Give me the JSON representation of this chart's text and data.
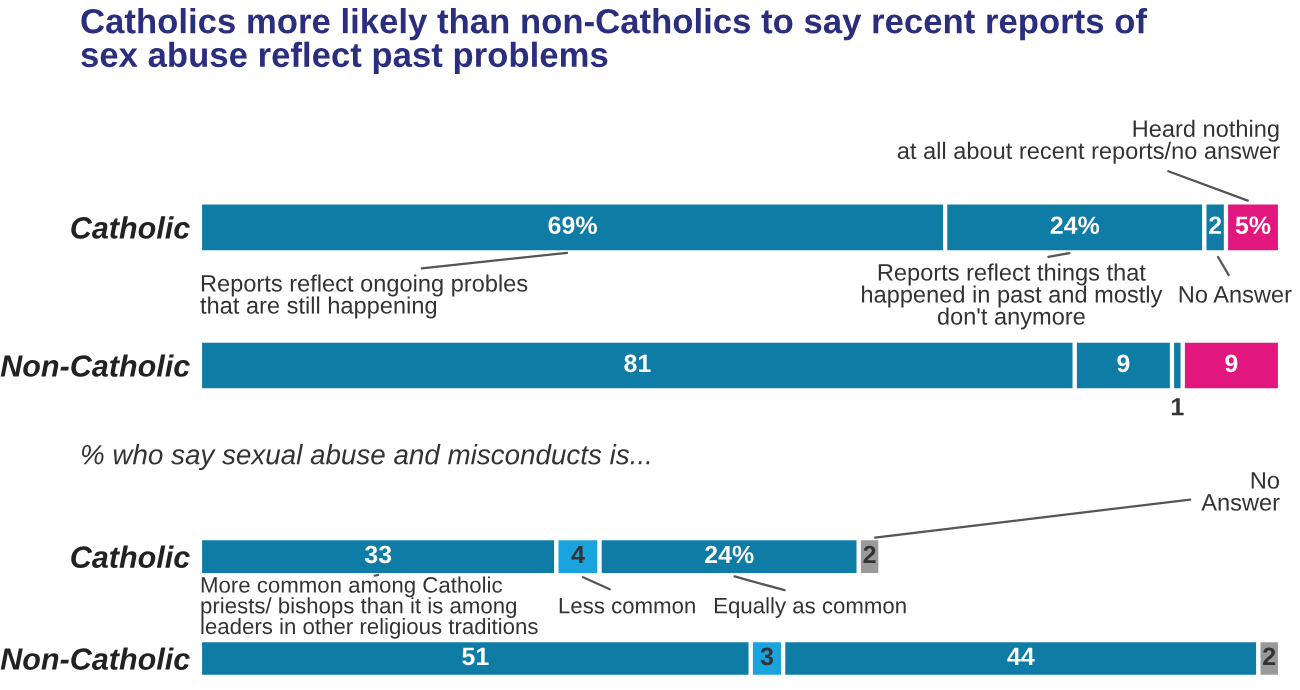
{
  "chart_data": [
    {
      "type": "bar",
      "orientation": "horizontal",
      "stacked": true,
      "tick_labels": "y",
      "title": "Catholics more likely than non-Catholics to say recent reports of\nsex abuse reflect past problems",
      "categories": [
        "Catholic",
        "Non-Catholic"
      ],
      "series": [
        {
          "name": "Reports reflect ongoing probles\nthat are still happening",
          "color": "#0f7ca6",
          "values": [
            69,
            81
          ],
          "value_labels": [
            "69%",
            "81"
          ]
        },
        {
          "name": "Reports reflect things that\nhappened in past and mostly\ndon't anymore",
          "color": "#0f7ca6",
          "values": [
            24,
            9
          ],
          "value_labels": [
            "24%",
            "9"
          ]
        },
        {
          "name": "No Answer",
          "color": "#0f7ca6",
          "values": [
            2,
            1
          ],
          "value_labels": [
            "2",
            "1"
          ]
        },
        {
          "name": "Heard nothing\nat all about recent reports/no answer",
          "color": "#e2177e",
          "values": [
            5,
            9
          ],
          "value_labels": [
            "5%",
            "9"
          ]
        }
      ]
    },
    {
      "type": "bar",
      "orientation": "horizontal",
      "stacked": true,
      "tick_labels": "y",
      "title": "% who say sexual abuse and misconducts is...",
      "categories": [
        "Catholic",
        "Non-Catholic"
      ],
      "series": [
        {
          "name": "More common among Catholic\npriests/ bishops than it is among\nleaders in other religious traditions",
          "color": "#0f7ca6",
          "values": [
            33,
            51
          ],
          "value_labels": [
            "33",
            "51"
          ]
        },
        {
          "name": "Less common",
          "color": "#1aa3dc",
          "values": [
            4,
            3
          ],
          "value_labels": [
            "4",
            "3"
          ]
        },
        {
          "name": "Equally as common",
          "color": "#0f7ca6",
          "values": [
            24,
            44
          ],
          "value_labels": [
            "24%",
            "44"
          ]
        },
        {
          "name": "No\nAnswer",
          "color": "#9a9a9a",
          "values": [
            2,
            2
          ],
          "value_labels": [
            "2",
            "2"
          ]
        }
      ]
    }
  ]
}
